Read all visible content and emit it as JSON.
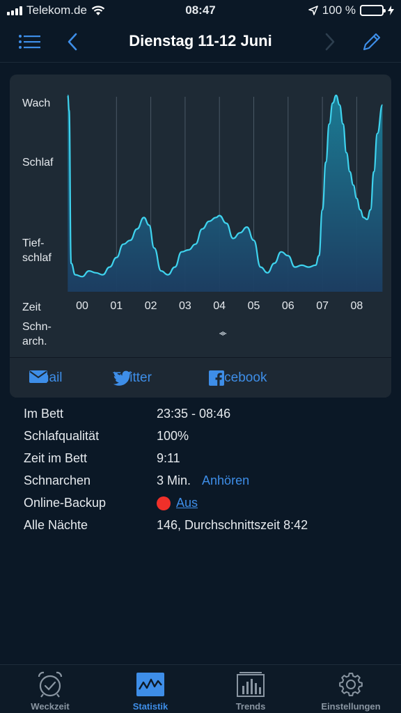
{
  "status_bar": {
    "carrier": "Telekom.de",
    "time": "08:47",
    "battery": "100 %",
    "icons": [
      "signal-bars-icon",
      "wifi-icon",
      "location-arrow-icon",
      "battery-icon"
    ]
  },
  "nav": {
    "title": "Dienstag 11-12 Juni",
    "icons": [
      "list-icon",
      "chevron-left-icon",
      "chevron-right-icon",
      "pencil-icon"
    ]
  },
  "chart": {
    "y_labels": {
      "wach": "Wach",
      "schlaf": "Schlaf",
      "tief_1": "Tief-",
      "tief_2": "schlaf"
    },
    "zeit_label": "Zeit",
    "schnarch_1": "Schn-",
    "schnarch_2": "arch.",
    "colors": {
      "line": "#3fd3ee",
      "fill_top": "#1b7f98",
      "fill_bottom": "#1c3e63",
      "grid": "#4a5866"
    }
  },
  "chart_data": {
    "type": "area",
    "x_ticks": [
      "00",
      "01",
      "02",
      "03",
      "04",
      "05",
      "06",
      "07",
      "08"
    ],
    "y_levels": [
      "Tief-schlaf",
      "Schlaf",
      "Wach"
    ],
    "series": [
      {
        "values": [
          [
            -0.42,
            1.0
          ],
          [
            -0.38,
            0.92
          ],
          [
            -0.32,
            0.12
          ],
          [
            -0.2,
            0.06
          ],
          [
            0.0,
            0.05
          ],
          [
            0.2,
            0.08
          ],
          [
            0.4,
            0.07
          ],
          [
            0.6,
            0.06
          ],
          [
            0.8,
            0.1
          ],
          [
            1.0,
            0.15
          ],
          [
            1.2,
            0.22
          ],
          [
            1.4,
            0.24
          ],
          [
            1.6,
            0.3
          ],
          [
            1.8,
            0.36
          ],
          [
            1.95,
            0.32
          ],
          [
            2.1,
            0.2
          ],
          [
            2.3,
            0.08
          ],
          [
            2.5,
            0.06
          ],
          [
            2.7,
            0.1
          ],
          [
            2.9,
            0.18
          ],
          [
            3.1,
            0.19
          ],
          [
            3.3,
            0.22
          ],
          [
            3.5,
            0.3
          ],
          [
            3.7,
            0.34
          ],
          [
            3.9,
            0.36
          ],
          [
            4.0,
            0.37
          ],
          [
            4.2,
            0.33
          ],
          [
            4.4,
            0.25
          ],
          [
            4.6,
            0.28
          ],
          [
            4.8,
            0.31
          ],
          [
            5.0,
            0.24
          ],
          [
            5.2,
            0.1
          ],
          [
            5.4,
            0.07
          ],
          [
            5.6,
            0.12
          ],
          [
            5.8,
            0.18
          ],
          [
            6.0,
            0.16
          ],
          [
            6.2,
            0.1
          ],
          [
            6.4,
            0.11
          ],
          [
            6.6,
            0.1
          ],
          [
            6.8,
            0.11
          ],
          [
            6.9,
            0.16
          ],
          [
            7.0,
            0.4
          ],
          [
            7.1,
            0.65
          ],
          [
            7.2,
            0.85
          ],
          [
            7.3,
            0.96
          ],
          [
            7.4,
            1.0
          ],
          [
            7.5,
            0.95
          ],
          [
            7.6,
            0.85
          ],
          [
            7.7,
            0.7
          ],
          [
            7.8,
            0.6
          ],
          [
            7.9,
            0.53
          ],
          [
            8.0,
            0.46
          ],
          [
            8.1,
            0.4
          ],
          [
            8.2,
            0.36
          ],
          [
            8.3,
            0.35
          ],
          [
            8.4,
            0.4
          ],
          [
            8.5,
            0.6
          ],
          [
            8.6,
            0.8
          ],
          [
            8.75,
            0.95
          ]
        ]
      }
    ],
    "grid": true,
    "snore_marker_hour": 4.1
  },
  "share": {
    "email": "Email",
    "twitter": "Twitter",
    "facebook": "Facebook"
  },
  "details": [
    {
      "key": "Im Bett",
      "value": "23:35 - 08:46"
    },
    {
      "key": "Schlafqualität",
      "value": "100%"
    },
    {
      "key": "Zeit im Bett",
      "value": "9:11"
    },
    {
      "key": "Schnarchen",
      "value": "3 Min.",
      "link": "Anhören"
    },
    {
      "key": "Online-Backup",
      "link": "Aus",
      "status_color": "#f0302a"
    },
    {
      "key": "Alle Nächte",
      "value": "146, Durchschnittszeit 8:42"
    }
  ],
  "tabs": [
    {
      "label": "Weckzeit",
      "icon": "alarm-clock-icon"
    },
    {
      "label": "Statistik",
      "icon": "statistics-chart-icon",
      "active": true
    },
    {
      "label": "Trends",
      "icon": "trends-bars-icon"
    },
    {
      "label": "Einstellungen",
      "icon": "gear-icon"
    }
  ]
}
